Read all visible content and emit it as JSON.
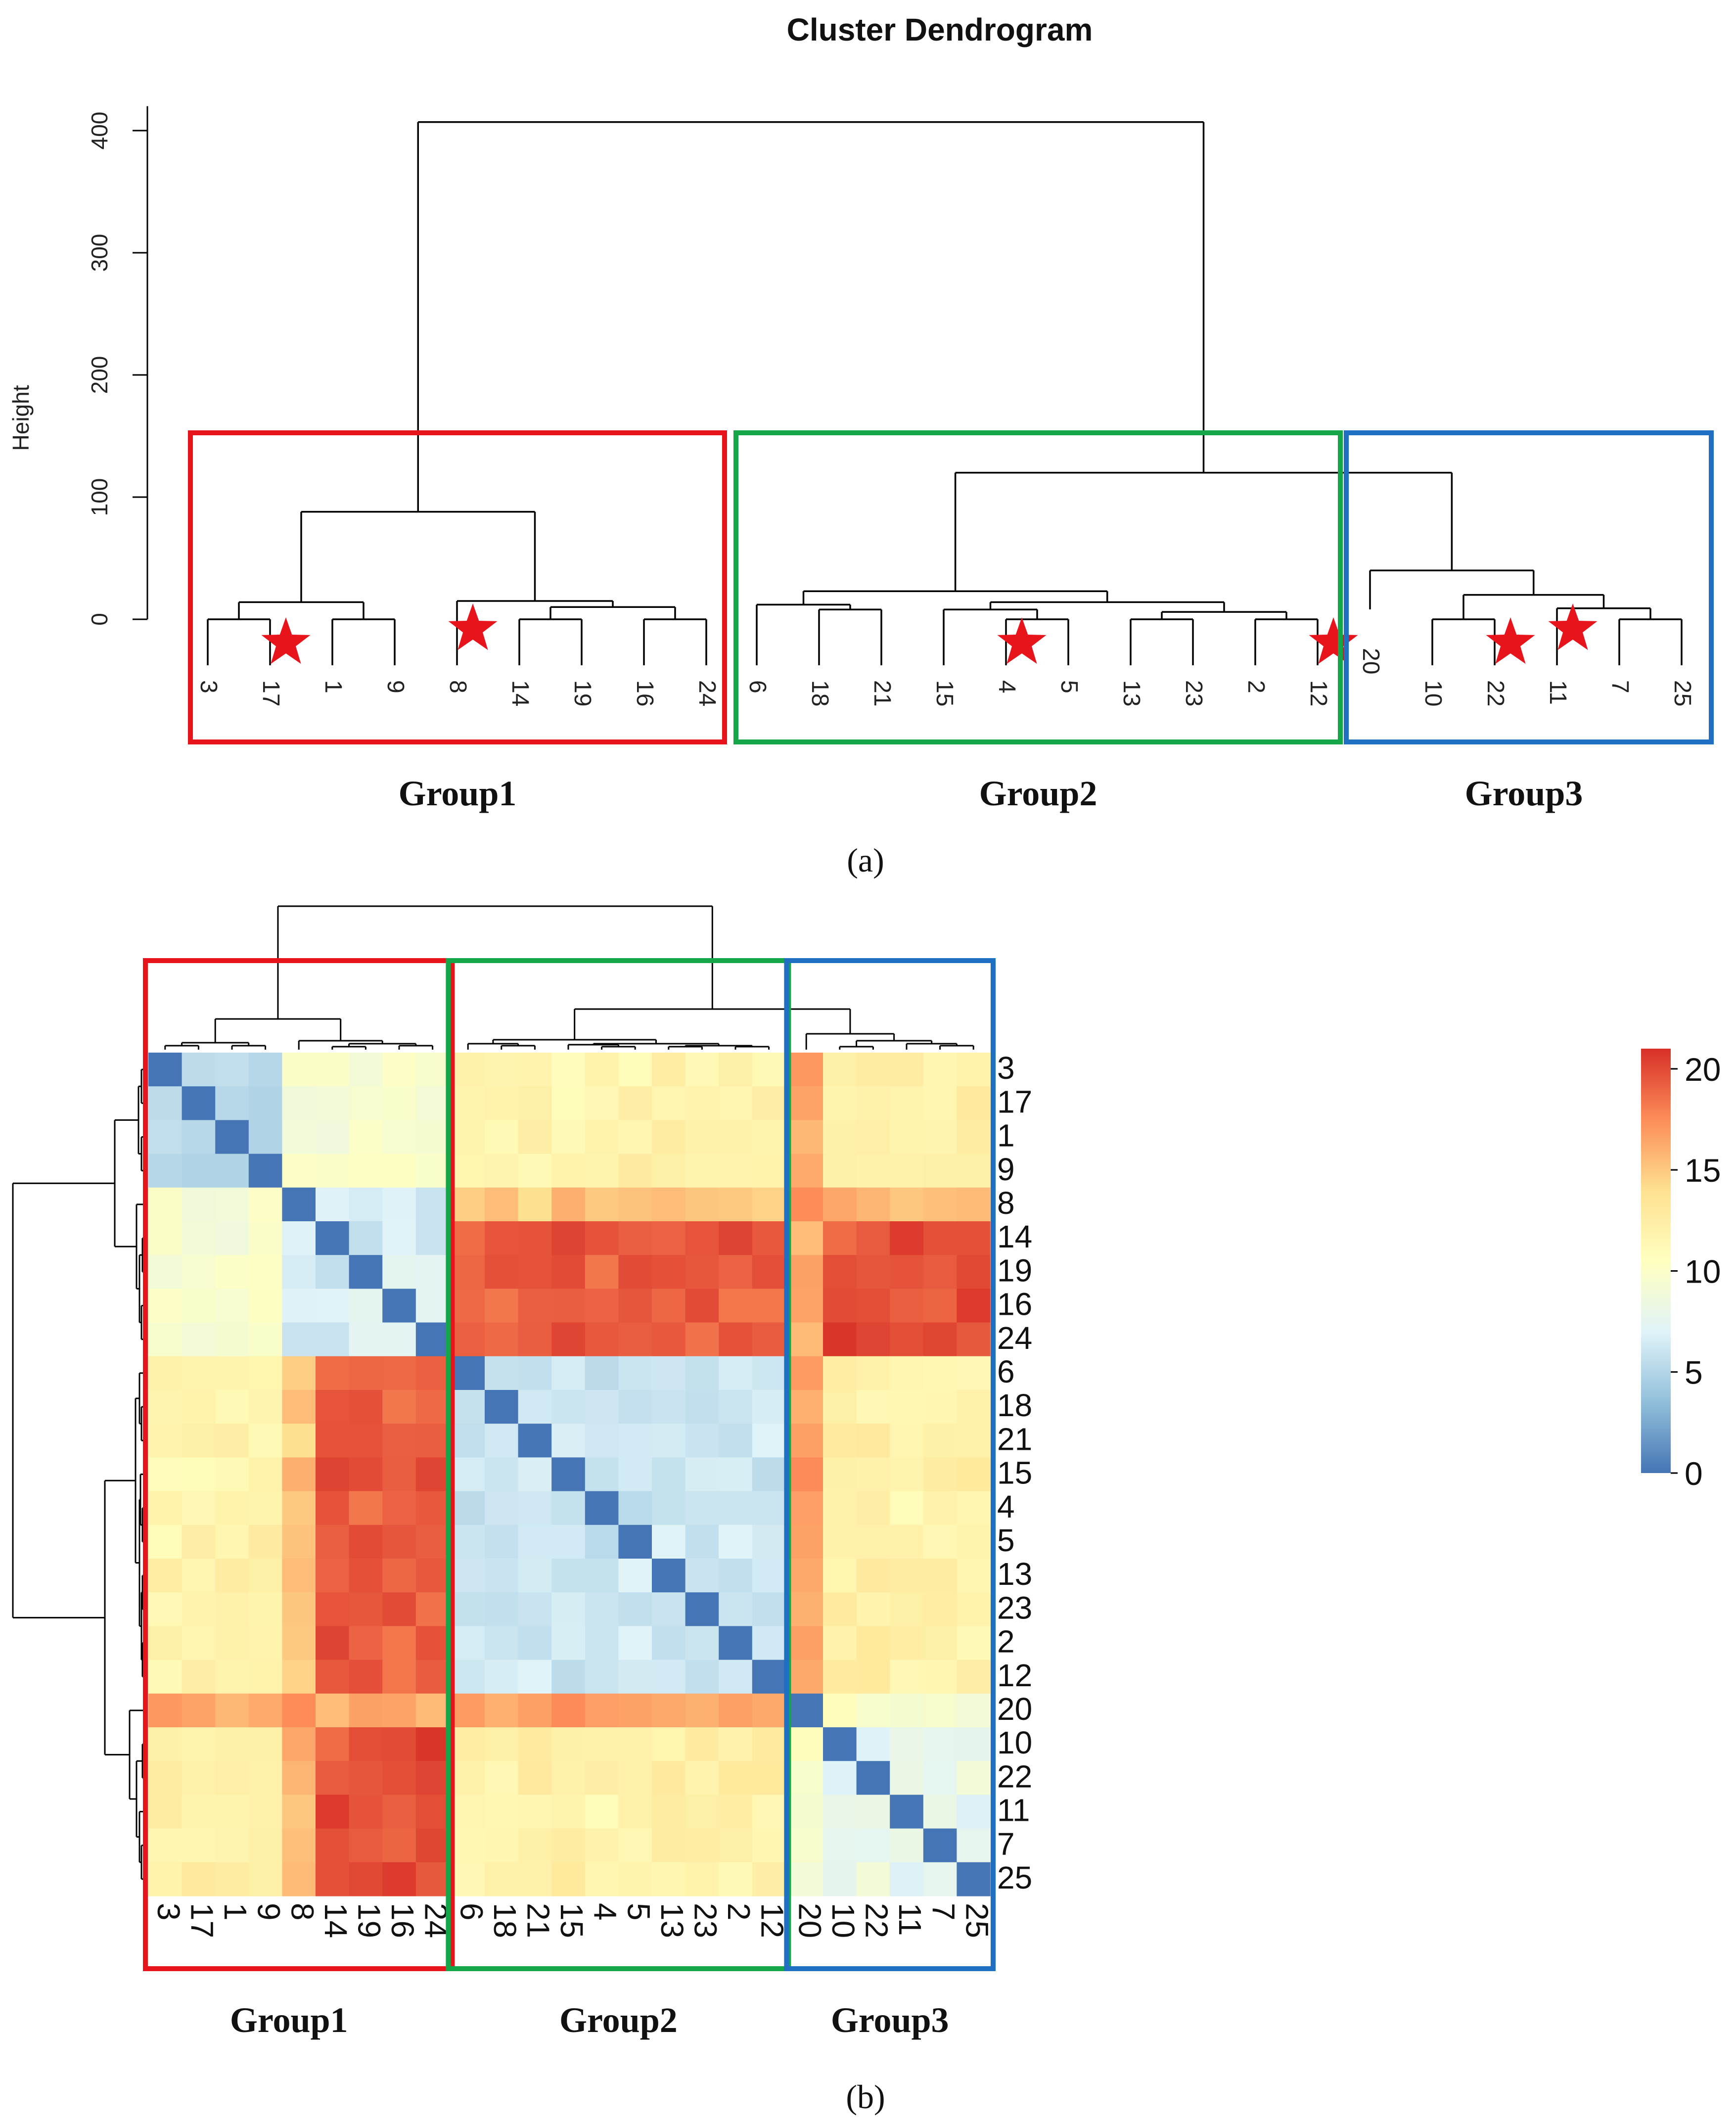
{
  "chart_data": [
    {
      "type": "dendrogram",
      "title": "Cluster Dendrogram",
      "ylabel": "Height",
      "ylim": [
        0,
        420
      ],
      "yticks": [
        "0",
        "100",
        "200",
        "300",
        "400"
      ],
      "panel_label": "(a)",
      "leaves": [
        "3",
        "17",
        "1",
        "9",
        "8",
        "14",
        "19",
        "16",
        "24",
        "6",
        "18",
        "21",
        "15",
        "4",
        "5",
        "13",
        "23",
        "2",
        "12",
        "20",
        "10",
        "22",
        "11",
        "7",
        "25"
      ],
      "starred_leaves": [
        "17",
        "8",
        "4",
        "12",
        "22",
        "11"
      ],
      "merges": [
        {
          "left": 0,
          "right": 1,
          "height": 0
        },
        {
          "left": 2,
          "right": 3,
          "height": 0
        },
        {
          "left": 25,
          "right": 26,
          "height": 14
        },
        {
          "left": 5,
          "right": 6,
          "height": 0
        },
        {
          "left": 7,
          "right": 8,
          "height": 0
        },
        {
          "left": 28,
          "right": 29,
          "height": 10
        },
        {
          "left": 4,
          "right": 30,
          "height": 16
        },
        {
          "left": 27,
          "right": 31,
          "height": 88
        },
        {
          "left": 10,
          "right": 11,
          "height": 8
        },
        {
          "left": 9,
          "right": 33,
          "height": 12
        },
        {
          "left": 13,
          "right": 14,
          "height": 0
        },
        {
          "left": 12,
          "right": 35,
          "height": 8
        },
        {
          "left": 15,
          "right": 16,
          "height": 0
        },
        {
          "left": 17,
          "right": 18,
          "height": 0
        },
        {
          "left": 37,
          "right": 38,
          "height": 6
        },
        {
          "left": 36,
          "right": 39,
          "height": 14
        },
        {
          "left": 34,
          "right": 40,
          "height": 22
        },
        {
          "left": 21,
          "right": 22,
          "height": 0
        },
        {
          "left": 23,
          "right": 24,
          "height": 0
        },
        {
          "left": 42,
          "right": 43,
          "height": 0
        },
        {
          "left": 44,
          "right": 20,
          "height": 8
        },
        {
          "left": 43,
          "right": 45,
          "height": 10
        },
        {
          "left": 19,
          "right": 45,
          "height": 22
        }
      ],
      "groups": [
        {
          "name": "Group1",
          "color": "#e8141b",
          "leaves": [
            "3",
            "17",
            "1",
            "9",
            "8",
            "14",
            "19",
            "16",
            "24"
          ]
        },
        {
          "name": "Group2",
          "color": "#16a64a",
          "leaves": [
            "6",
            "18",
            "21",
            "15",
            "4",
            "5",
            "13",
            "23",
            "2",
            "12"
          ]
        },
        {
          "name": "Group3",
          "color": "#1f6fc2",
          "leaves": [
            "20",
            "10",
            "22",
            "11",
            "7",
            "25"
          ]
        }
      ]
    },
    {
      "type": "heatmap",
      "panel_label": "(b)",
      "rows": [
        "3",
        "17",
        "1",
        "9",
        "8",
        "14",
        "19",
        "16",
        "24",
        "6",
        "18",
        "21",
        "15",
        "4",
        "5",
        "13",
        "23",
        "2",
        "12",
        "20",
        "10",
        "22",
        "11",
        "7",
        "25"
      ],
      "cols": [
        "3",
        "17",
        "1",
        "9",
        "8",
        "14",
        "19",
        "16",
        "24",
        "6",
        "18",
        "21",
        "15",
        "4",
        "5",
        "13",
        "23",
        "2",
        "12",
        "20",
        "10",
        "22",
        "11",
        "7",
        "25"
      ],
      "group_of": [
        1,
        1,
        1,
        1,
        1,
        1,
        1,
        1,
        1,
        2,
        2,
        2,
        2,
        2,
        2,
        2,
        2,
        2,
        2,
        3,
        3,
        3,
        3,
        3,
        3
      ],
      "colorbar": {
        "min": 0,
        "max": 21,
        "ticks": [
          "0",
          "5",
          "10",
          "15",
          "20"
        ],
        "colors": [
          "#4575b4",
          "#91bfdb",
          "#e0f3f8",
          "#ffffbf",
          "#fee090",
          "#fc8d59",
          "#d73027"
        ]
      },
      "groups": [
        {
          "name": "Group1",
          "color": "#e8141b"
        },
        {
          "name": "Group2",
          "color": "#16a64a"
        },
        {
          "name": "Group3",
          "color": "#1f6fc2"
        }
      ],
      "noise_seed": 7
    }
  ]
}
